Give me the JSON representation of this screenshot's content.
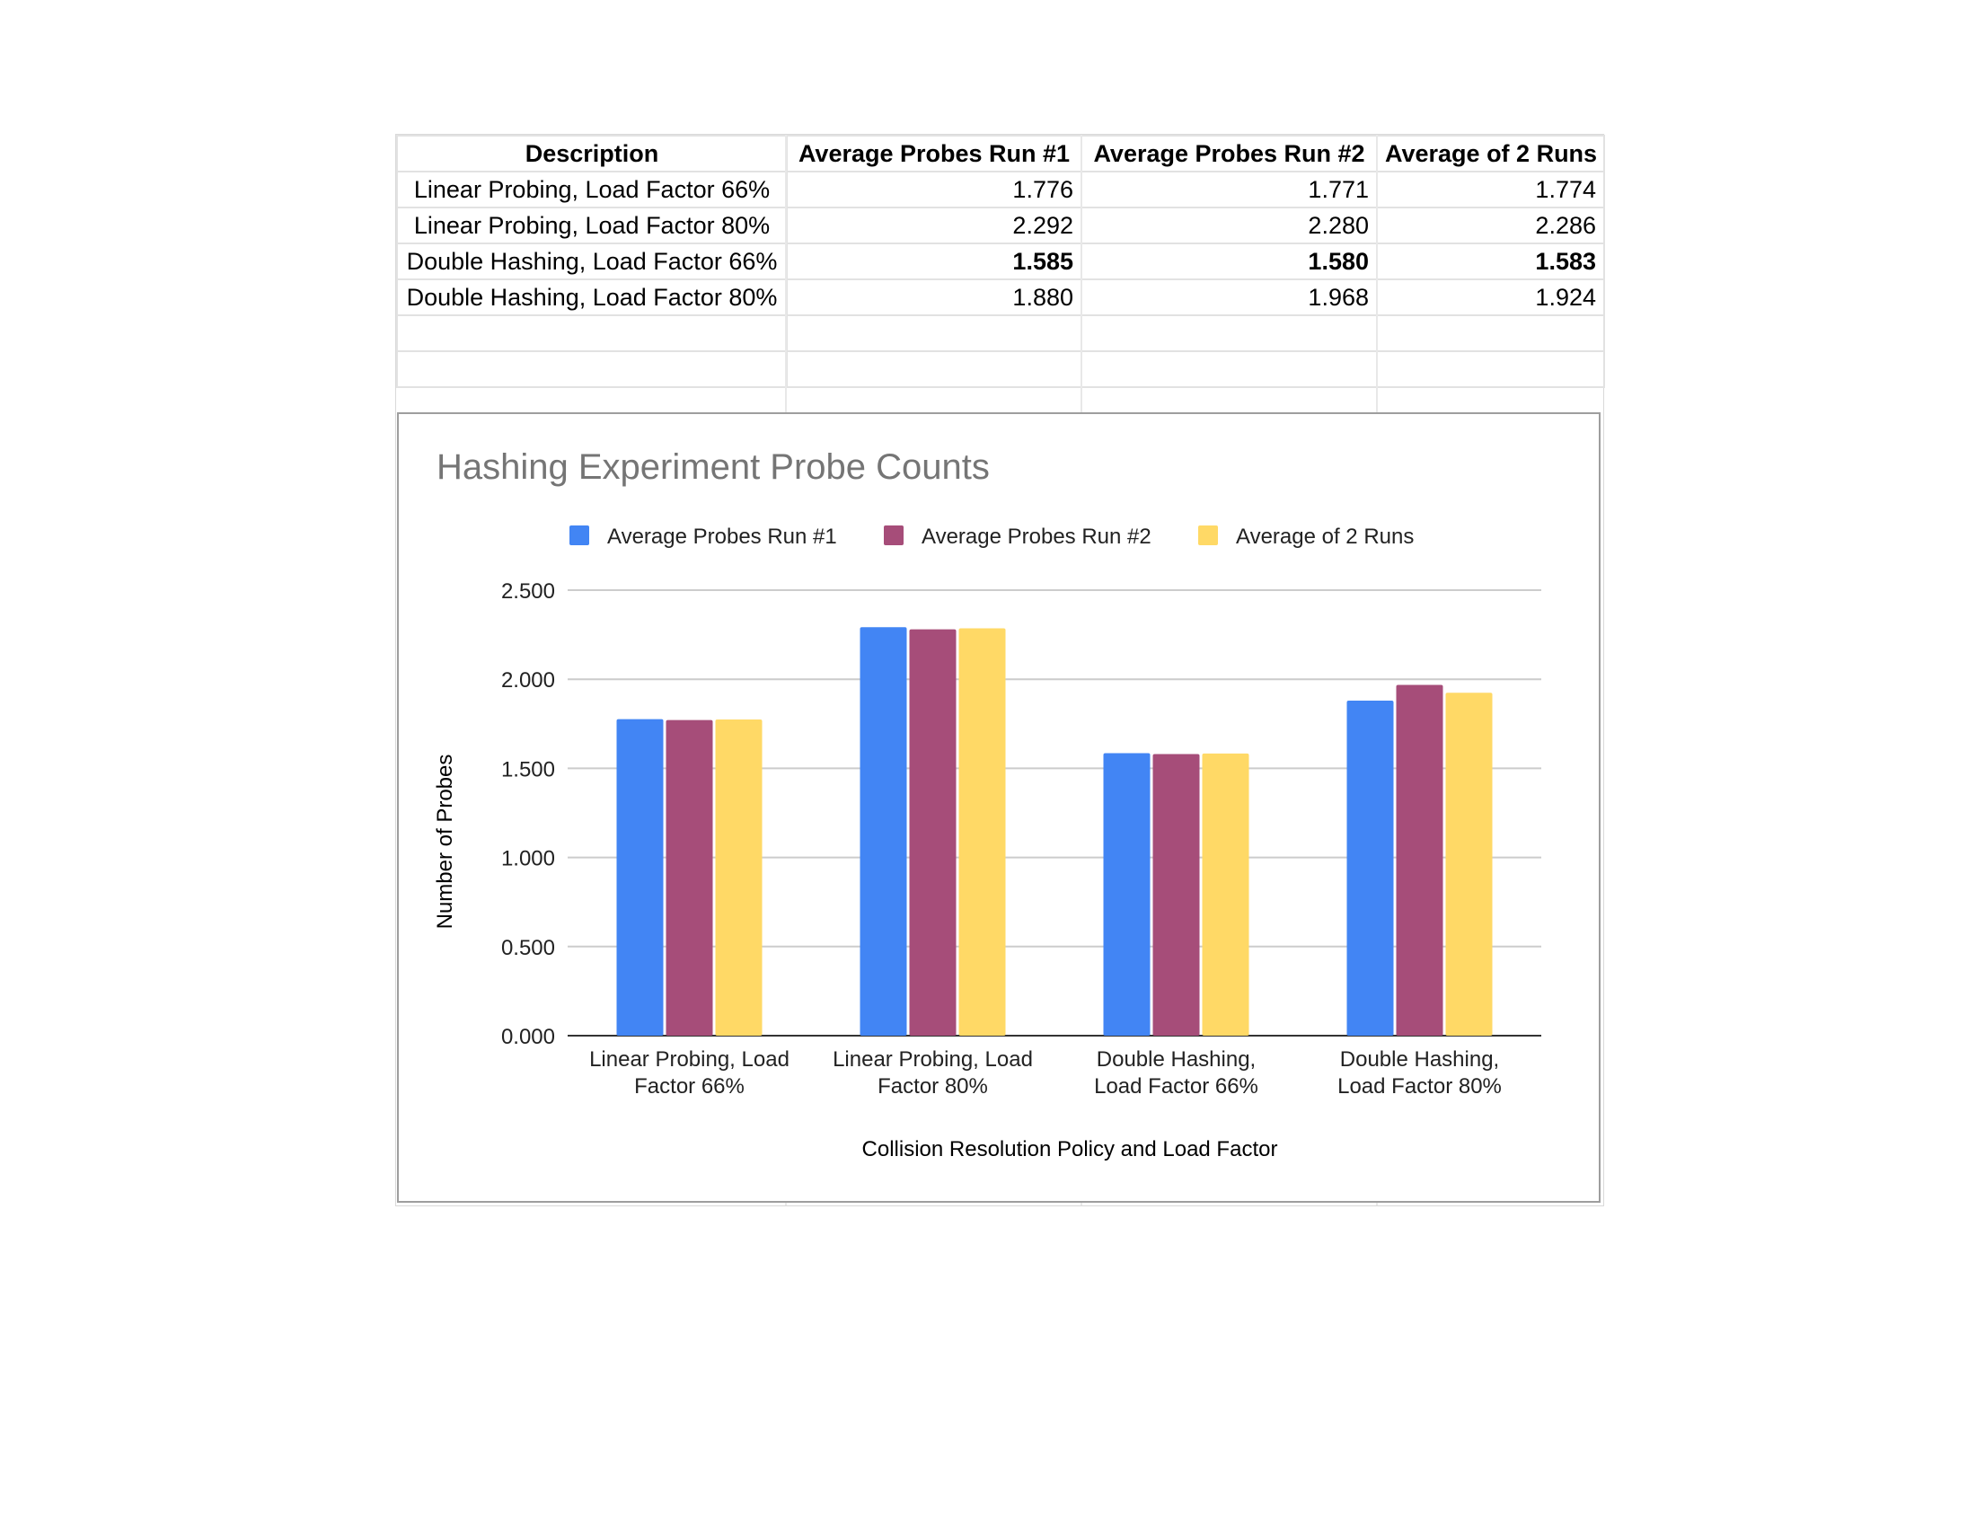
{
  "table": {
    "headers": [
      "Description",
      "Average Probes Run #1",
      "Average Probes Run #2",
      "Average of 2 Runs"
    ],
    "rows": [
      {
        "description": "Linear Probing, Load Factor 66%",
        "run1": "1.776",
        "run2": "1.771",
        "avg": "1.774",
        "bold": false
      },
      {
        "description": "Linear Probing, Load Factor 80%",
        "run1": "2.292",
        "run2": "2.280",
        "avg": "2.286",
        "bold": false
      },
      {
        "description": "Double Hashing, Load Factor 66%",
        "run1": "1.585",
        "run2": "1.580",
        "avg": "1.583",
        "bold": true
      },
      {
        "description": "Double Hashing, Load Factor 80%",
        "run1": "1.880",
        "run2": "1.968",
        "avg": "1.924",
        "bold": false
      }
    ]
  },
  "colors": {
    "series1": "#4285f4",
    "series2": "#a64d79",
    "series3": "#ffd966",
    "title": "#757575",
    "grid": "#cccccc"
  },
  "chart_data": {
    "type": "bar",
    "title": "Hashing Experiment Probe Counts",
    "xlabel": "Collision Resolution Policy and Load Factor",
    "ylabel": "Number of Probes",
    "categories": [
      [
        "Linear Probing, Load",
        "Factor 66%"
      ],
      [
        "Linear Probing, Load",
        "Factor 80%"
      ],
      [
        "Double Hashing,",
        "Load Factor 66%"
      ],
      [
        "Double Hashing,",
        "Load Factor 80%"
      ]
    ],
    "series": [
      {
        "name": "Average Probes Run #1",
        "values": [
          1.776,
          2.292,
          1.585,
          1.88
        ]
      },
      {
        "name": "Average Probes Run #2",
        "values": [
          1.771,
          2.28,
          1.58,
          1.968
        ]
      },
      {
        "name": "Average of 2 Runs",
        "values": [
          1.774,
          2.286,
          1.583,
          1.924
        ]
      }
    ],
    "ylim": [
      0,
      2.5
    ],
    "yticks": [
      "0.000",
      "0.500",
      "1.000",
      "1.500",
      "2.000",
      "2.500"
    ],
    "grid": true,
    "legend": "top"
  }
}
